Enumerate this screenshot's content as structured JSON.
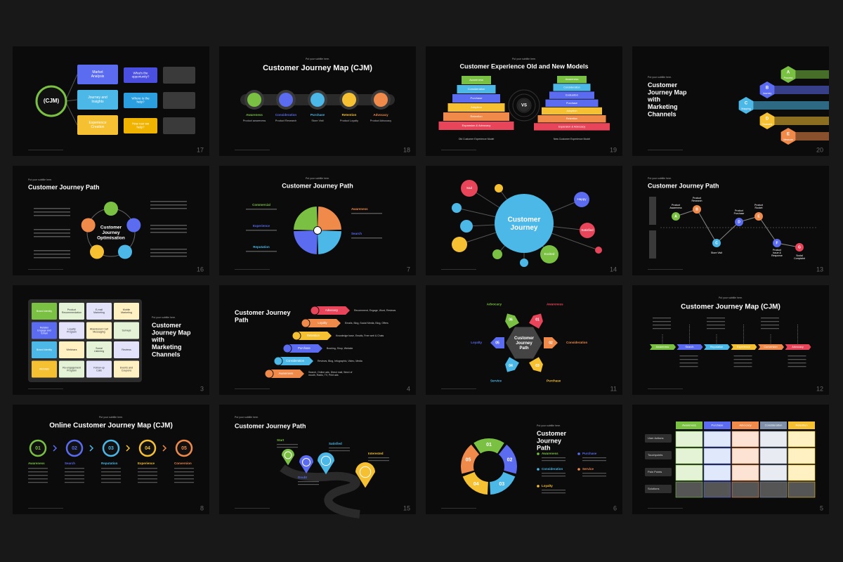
{
  "slides": [
    {
      "number": "17",
      "labels": [
        "(CJM)",
        "Market Analysis",
        "Journey and Insights",
        "Experience Creation",
        "What's the opportunity?",
        "Where is the help?",
        "How can we help?"
      ]
    },
    {
      "number": "18",
      "subtitle": "Put your subtitle here.",
      "title": "Customer Journey Map (CJM)",
      "labels": [
        "Awareness",
        "Consideration",
        "Purchase",
        "Retention",
        "Advocacy"
      ],
      "notes": [
        "Product awareness",
        "Product Research",
        "Store Visit",
        "Product Loyalty",
        "Product Advocacy"
      ]
    },
    {
      "number": "19",
      "subtitle": "Put your subtitle here.",
      "title": "Customer Experience Old and New Models",
      "left": [
        "Awareness",
        "Consideration",
        "Purchase",
        "Adoption",
        "Retention",
        "Expansion & Advocacy"
      ],
      "right": [
        "Awareness",
        "Consideration",
        "Evaluation",
        "Purchase",
        "Adoption",
        "Retention",
        "Expansion & Advocacy"
      ],
      "center": "VS",
      "captions": [
        "Old Customer Experience Model",
        "New Customer Experience Model"
      ]
    },
    {
      "number": "20",
      "subtitle": "Put your subtitle here.",
      "title": "Customer Journey Map with Marketing Channels",
      "labels": [
        "A",
        "B",
        "C",
        "D",
        "E"
      ],
      "notes": [
        "Process",
        "Journey",
        "Mapping",
        "Channels",
        "Measure"
      ]
    },
    {
      "number": "16",
      "subtitle": "Put your subtitle here.",
      "title": "Customer Journey Path",
      "center": "Customer Journey Optimisation"
    },
    {
      "number": "7",
      "subtitle": "Put your subtitle here.",
      "title": "Customer Journey Path",
      "labels": [
        "Commercial",
        "Experience",
        "Reputation",
        "Awareness",
        "Search"
      ]
    },
    {
      "number": "14",
      "center": "Customer Journey",
      "labels": [
        "Sad",
        "Happy",
        "Satisfied",
        "Excited"
      ]
    },
    {
      "number": "13",
      "subtitle": "Put your subtitle here.",
      "title": "Customer Journey Path",
      "labels": [
        "A",
        "B",
        "C",
        "D",
        "E",
        "F",
        "G"
      ],
      "notes": [
        "Product Awareness",
        "Product Research",
        "Store Visit",
        "Product Purchase",
        "Product Rocket",
        "Product Issue & Response",
        "Social Complaint"
      ]
    },
    {
      "number": "3",
      "subtitle": "Put your subtitle here.",
      "title": "Customer Journey Map with Marketing Channels",
      "cells": [
        "Brand Identity",
        "Product Recommendation",
        "E-mail Marketing",
        "Mobile Marketing",
        "Retailer Engage and Email",
        "Loyalty Program",
        "Abandoned Cart Messaging",
        "Surveys",
        "Brand Identity",
        "Webinars",
        "Social Listening",
        "Reviews",
        "Wishlists",
        "Re-engagement Program",
        "Follow-up Calls",
        "Events and Coupons"
      ]
    },
    {
      "number": "4",
      "title": "Customer Journey Path",
      "labels": [
        "Advocacy",
        "Loyalty",
        "Retention",
        "Purchase",
        "Consideration",
        "Awareness"
      ],
      "notes": [
        "Recommend, Engage, Word, Reviews",
        "Emails, Blog, Social Media, Blog, Offers",
        "Knowledge base, Emails, Free web & Chats",
        "Booking, Shop, Website",
        "Reviews, Blog, Infographic, Video, Media",
        "Search, Online ads, Direct mail, Word of mouth, Radio, TV, Print ads"
      ]
    },
    {
      "number": "11",
      "center": "Customer Journey Path",
      "labels": [
        "Advocacy",
        "Awareness",
        "Consideration",
        "Purchase",
        "Service",
        "Loyalty"
      ],
      "nums": [
        "06",
        "01",
        "02",
        "03",
        "04",
        "05"
      ]
    },
    {
      "number": "12",
      "subtitle": "Put your subtitle here.",
      "title": "Customer Journey Map (CJM)",
      "labels": [
        "Awareness",
        "Search",
        "Reputation",
        "Experience",
        "Conversion",
        "Advocacy"
      ]
    },
    {
      "number": "8",
      "subtitle": "Put your subtitle here.",
      "title": "Online Customer Journey Map (CJM)",
      "nums": [
        "01",
        "02",
        "03",
        "04",
        "05"
      ],
      "labels": [
        "Awareness",
        "Search",
        "Reputation",
        "Experience",
        "Conversion"
      ]
    },
    {
      "number": "15",
      "subtitle": "Put your subtitle here.",
      "title": "Customer Journey Path",
      "labels": [
        "Start",
        "Doubt",
        "Satisfied",
        "Interested"
      ]
    },
    {
      "number": "6",
      "subtitle": "Put your subtitle here.",
      "title": "Customer Journey Path",
      "nums": [
        "01",
        "02",
        "03",
        "04",
        "05"
      ],
      "labels": [
        "Awareness",
        "Consideration",
        "Loyalty",
        "Purchase",
        "Service"
      ]
    },
    {
      "number": "5",
      "columns": [
        "Awareness",
        "Purchase",
        "Advocacy",
        "Consideration",
        "Retention"
      ],
      "rows": [
        "User Actions",
        "Touchpoints",
        "Pain Points",
        "Solutions"
      ]
    }
  ]
}
